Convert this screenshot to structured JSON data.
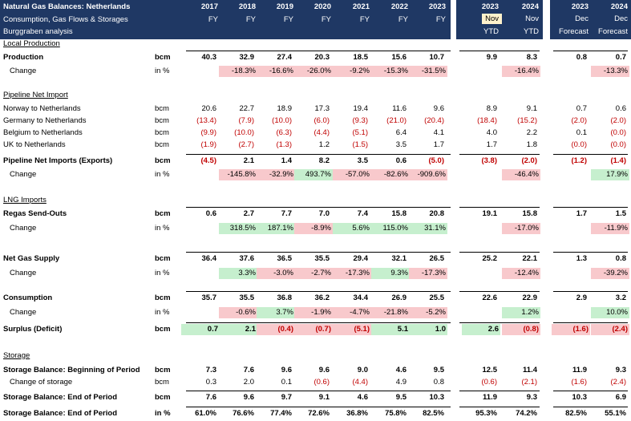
{
  "header": {
    "title": "Natural Gas Balances: Netherlands",
    "subtitle": "Consumption, Gas Flows & Storages",
    "source": "Burggraben analysis",
    "columns": [
      {
        "top": "2017",
        "bottom": "FY"
      },
      {
        "top": "2018",
        "bottom": "FY"
      },
      {
        "top": "2019",
        "bottom": "FY"
      },
      {
        "top": "2020",
        "bottom": "FY"
      },
      {
        "top": "2021",
        "bottom": "FY"
      },
      {
        "top": "2022",
        "bottom": "FY"
      },
      {
        "top": "2023",
        "bottom": "FY"
      },
      {
        "top": "2023",
        "mid": "Nov",
        "bottom": "YTD"
      },
      {
        "top": "2024",
        "mid": "Nov",
        "bottom": "YTD"
      },
      {
        "top": "2023",
        "mid": "Dec",
        "bottom": "Forecast"
      },
      {
        "top": "2024",
        "mid": "Dec",
        "bottom": "Forecast"
      }
    ]
  },
  "sections": {
    "local": "Local Production",
    "pipeline": "Pipeline Net Import",
    "lng": "LNG Imports",
    "storage": "Storage"
  },
  "rows": [
    {
      "id": "production",
      "label": "Production",
      "unit": "bcm",
      "bold": true,
      "values": [
        "40.3",
        "32.9",
        "27.4",
        "20.3",
        "18.5",
        "15.6",
        "10.7",
        "9.9",
        "8.3",
        "0.8",
        "0.7"
      ]
    },
    {
      "id": "production-change",
      "label": "Change",
      "unit": "in %",
      "indent": true,
      "values": [
        "",
        "-18.3%",
        "-16.6%",
        "-26.0%",
        "-9.2%",
        "-15.3%",
        "-31.5%",
        "",
        "-16.4%",
        "",
        "-13.3%"
      ],
      "fills": [
        "",
        "r",
        "r",
        "r",
        "r",
        "r",
        "r",
        "",
        "r",
        "",
        "r"
      ]
    },
    {
      "id": "norway",
      "label": "Norway to Netherlands",
      "unit": "bcm",
      "values": [
        "20.6",
        "22.7",
        "18.9",
        "17.3",
        "19.4",
        "11.6",
        "9.6",
        "8.9",
        "9.1",
        "0.7",
        "0.6"
      ]
    },
    {
      "id": "germany",
      "label": "Germany to Netherlands",
      "unit": "bcm",
      "values": [
        "(13.4)",
        "(7.9)",
        "(10.0)",
        "(6.0)",
        "(9.3)",
        "(21.0)",
        "(20.4)",
        "(18.4)",
        "(15.2)",
        "(2.0)",
        "(2.0)"
      ]
    },
    {
      "id": "belgium",
      "label": "Belgium to Netherlands",
      "unit": "bcm",
      "values": [
        "(9.9)",
        "(10.0)",
        "(6.3)",
        "(4.4)",
        "(5.1)",
        "6.4",
        "4.1",
        "4.0",
        "2.2",
        "0.1",
        "(0.0)"
      ]
    },
    {
      "id": "uk",
      "label": "UK to Netherlands",
      "unit": "bcm",
      "values": [
        "(1.9)",
        "(2.7)",
        "(1.3)",
        "1.2",
        "(1.5)",
        "3.5",
        "1.7",
        "1.7",
        "1.8",
        "(0.0)",
        "(0.0)"
      ]
    },
    {
      "id": "pipeline-net",
      "label": "Pipeline Net Imports (Exports)",
      "unit": "bcm",
      "bold": true,
      "values": [
        "(4.5)",
        "2.1",
        "1.4",
        "8.2",
        "3.5",
        "0.6",
        "(5.0)",
        "(3.8)",
        "(2.0)",
        "(1.2)",
        "(1.4)"
      ]
    },
    {
      "id": "pipeline-change",
      "label": "Change",
      "unit": "in %",
      "indent": true,
      "values": [
        "",
        "-145.8%",
        "-32.9%",
        "493.7%",
        "-57.0%",
        "-82.6%",
        "-909.6%",
        "",
        "-46.4%",
        "",
        "17.9%"
      ],
      "fills": [
        "",
        "r",
        "r",
        "g",
        "r",
        "r",
        "r",
        "",
        "r",
        "",
        "g"
      ]
    },
    {
      "id": "regas",
      "label": "Regas Send-Outs",
      "unit": "bcm",
      "bold": true,
      "values": [
        "0.6",
        "2.7",
        "7.7",
        "7.0",
        "7.4",
        "15.8",
        "20.8",
        "19.1",
        "15.8",
        "1.7",
        "1.5"
      ]
    },
    {
      "id": "regas-change",
      "label": "Change",
      "unit": "in %",
      "indent": true,
      "values": [
        "",
        "318.5%",
        "187.1%",
        "-8.9%",
        "5.6%",
        "115.0%",
        "31.1%",
        "",
        "-17.0%",
        "",
        "-11.9%"
      ],
      "fills": [
        "",
        "g",
        "g",
        "r",
        "g",
        "g",
        "g",
        "",
        "r",
        "",
        "r"
      ]
    },
    {
      "id": "net-supply",
      "label": "Net Gas Supply",
      "unit": "bcm",
      "bold": true,
      "values": [
        "36.4",
        "37.6",
        "36.5",
        "35.5",
        "29.4",
        "32.1",
        "26.5",
        "25.2",
        "22.1",
        "1.3",
        "0.8"
      ]
    },
    {
      "id": "net-supply-change",
      "label": "Change",
      "unit": "in %",
      "indent": true,
      "values": [
        "",
        "3.3%",
        "-3.0%",
        "-2.7%",
        "-17.3%",
        "9.3%",
        "-17.3%",
        "",
        "-12.4%",
        "",
        "-39.2%"
      ],
      "fills": [
        "",
        "g",
        "r",
        "r",
        "r",
        "g",
        "r",
        "",
        "r",
        "",
        "r"
      ]
    },
    {
      "id": "consumption",
      "label": "Consumption",
      "unit": "bcm",
      "bold": true,
      "values": [
        "35.7",
        "35.5",
        "36.8",
        "36.2",
        "34.4",
        "26.9",
        "25.5",
        "22.6",
        "22.9",
        "2.9",
        "3.2"
      ]
    },
    {
      "id": "consumption-change",
      "label": "Change",
      "unit": "in %",
      "indent": true,
      "values": [
        "",
        "-0.6%",
        "3.7%",
        "-1.9%",
        "-4.7%",
        "-21.8%",
        "-5.2%",
        "",
        "1.2%",
        "",
        "10.0%"
      ],
      "fills": [
        "",
        "r",
        "g",
        "r",
        "r",
        "r",
        "r",
        "",
        "g",
        "",
        "g"
      ]
    },
    {
      "id": "surplus",
      "label": "Surplus (Deficit)",
      "unit": "bcm",
      "bold": true,
      "values": [
        "0.7",
        "2.1",
        "(0.4)",
        "(0.7)",
        "(5.1)",
        "5.1",
        "1.0",
        "2.6",
        "(0.8)",
        "(1.6)",
        "(2.4)"
      ],
      "fills": [
        "g",
        "g",
        "r",
        "r",
        "r",
        "g",
        "g",
        "g",
        "r",
        "r",
        "r"
      ]
    },
    {
      "id": "storage-begin",
      "label": "Storage Balance: Beginning of Period",
      "unit": "bcm",
      "bold": true,
      "values": [
        "7.3",
        "7.6",
        "9.6",
        "9.6",
        "9.0",
        "4.6",
        "9.5",
        "12.5",
        "11.4",
        "11.9",
        "9.3"
      ]
    },
    {
      "id": "storage-change",
      "label": "Change of storage",
      "unit": "bcm",
      "indent": true,
      "values": [
        "0.3",
        "2.0",
        "0.1",
        "(0.6)",
        "(4.4)",
        "4.9",
        "0.8",
        "(0.6)",
        "(2.1)",
        "(1.6)",
        "(2.4)"
      ]
    },
    {
      "id": "storage-end",
      "label": "Storage Balance: End of Period",
      "unit": "bcm",
      "bold": true,
      "values": [
        "7.6",
        "9.6",
        "9.7",
        "9.1",
        "4.6",
        "9.5",
        "10.3",
        "11.9",
        "9.3",
        "10.3",
        "6.9"
      ]
    },
    {
      "id": "storage-end-pct",
      "label": "Storage Balance: End of Period",
      "unit": "in %",
      "bold": true,
      "values": [
        "61.0%",
        "76.6%",
        "77.4%",
        "72.6%",
        "36.8%",
        "75.8%",
        "82.5%",
        "95.3%",
        "74.2%",
        "82.5%",
        "55.1%"
      ]
    }
  ]
}
